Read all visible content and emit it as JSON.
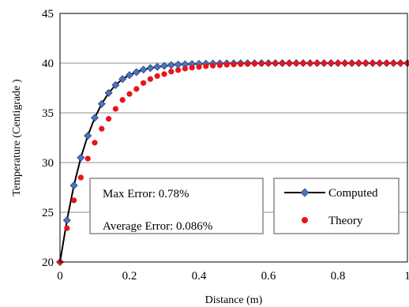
{
  "chart_data": {
    "type": "line",
    "title": "",
    "xlabel": "Distance (m)",
    "ylabel": "Temperature (Centigrade )",
    "xlim": [
      0,
      1
    ],
    "ylim": [
      20,
      45
    ],
    "x_ticks": [
      "0",
      "0.2",
      "0.4",
      "0.6",
      "0.8",
      "1"
    ],
    "y_ticks": [
      "20",
      "25",
      "30",
      "35",
      "40",
      "45"
    ],
    "grid": "horizontal",
    "legend_position": "bottom-right",
    "stats": {
      "max_error": "Max Error: 0.78%",
      "avg_error": "Average Error: 0.086%"
    },
    "x": [
      0,
      0.02,
      0.04,
      0.06,
      0.08,
      0.1,
      0.12,
      0.14,
      0.16,
      0.18,
      0.2,
      0.22,
      0.24,
      0.26,
      0.28,
      0.3,
      0.32,
      0.34,
      0.36,
      0.38,
      0.4,
      0.42,
      0.44,
      0.46,
      0.48,
      0.5,
      0.52,
      0.54,
      0.56,
      0.58,
      0.6,
      0.62,
      0.64,
      0.66,
      0.68,
      0.7,
      0.72,
      0.74,
      0.76,
      0.78,
      0.8,
      0.82,
      0.84,
      0.86,
      0.88,
      0.9,
      0.92,
      0.94,
      0.96,
      0.98,
      1.0
    ],
    "series": [
      {
        "name": "Computed",
        "style": "line-diamond",
        "color": "#000000",
        "marker_color": "#4a73c0",
        "values": [
          20.0,
          24.2,
          27.7,
          30.5,
          32.7,
          34.5,
          35.9,
          37.0,
          37.8,
          38.4,
          38.8,
          39.1,
          39.35,
          39.5,
          39.62,
          39.72,
          39.8,
          39.85,
          39.88,
          39.91,
          39.93,
          39.95,
          39.96,
          39.97,
          39.98,
          39.98,
          39.99,
          39.99,
          39.99,
          40.0,
          40.0,
          40.0,
          40.0,
          40.0,
          40.0,
          40.0,
          40.0,
          40.0,
          40.0,
          40.0,
          40.0,
          40.0,
          40.0,
          40.0,
          40.0,
          40.0,
          40.0,
          40.0,
          40.0,
          40.0,
          40.0
        ]
      },
      {
        "name": "Theory",
        "style": "marker-circle",
        "color": "#e8141b",
        "values": [
          20.0,
          23.4,
          26.2,
          28.5,
          30.4,
          32.0,
          33.4,
          34.4,
          35.4,
          36.3,
          36.9,
          37.4,
          38.0,
          38.4,
          38.7,
          38.9,
          39.15,
          39.3,
          39.45,
          39.55,
          39.62,
          39.7,
          39.75,
          39.8,
          39.84,
          39.87,
          39.9,
          39.92,
          39.94,
          39.95,
          39.96,
          39.97,
          39.97,
          39.98,
          39.98,
          39.99,
          39.99,
          39.99,
          39.99,
          40.0,
          40.0,
          40.0,
          40.0,
          40.0,
          40.0,
          40.0,
          40.0,
          40.0,
          40.0,
          40.0,
          40.0
        ]
      }
    ]
  }
}
